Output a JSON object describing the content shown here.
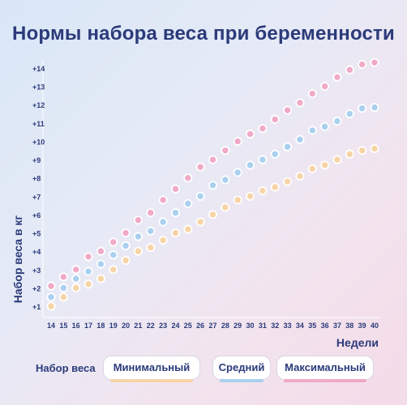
{
  "title": "Нормы набора веса при беременности",
  "chart_data": {
    "type": "scatter",
    "title": "Нормы набора веса при беременности",
    "xlabel": "Недели",
    "ylabel": "Набор веса в кг",
    "x": [
      14,
      15,
      16,
      17,
      18,
      19,
      20,
      21,
      22,
      23,
      24,
      25,
      26,
      27,
      28,
      29,
      30,
      31,
      32,
      33,
      34,
      35,
      36,
      37,
      38,
      39,
      40
    ],
    "x_tick_labels": [
      "14",
      "15",
      "16",
      "17",
      "18",
      "19",
      "20",
      "21",
      "22",
      "23",
      "24",
      "25",
      "26",
      "27",
      "28",
      "29",
      "30",
      "31",
      "32",
      "33",
      "34",
      "35",
      "36",
      "37",
      "38",
      "39",
      "40"
    ],
    "y_tick_labels": [
      "+1",
      "+2",
      "+3",
      "+4",
      "+5",
      "+6",
      "+7",
      "+8",
      "+9",
      "+10",
      "+11",
      "+12",
      "+13",
      "+14"
    ],
    "ylim": [
      1,
      14
    ],
    "xlim": [
      14,
      40
    ],
    "grid": false,
    "series": [
      {
        "name": "Минимальный",
        "color": "#f7d4a6",
        "values": [
          1.0,
          1.5,
          2.0,
          2.2,
          2.5,
          3.0,
          3.5,
          4.0,
          4.2,
          4.6,
          5.0,
          5.2,
          5.6,
          6.0,
          6.4,
          6.8,
          7.0,
          7.3,
          7.5,
          7.8,
          8.1,
          8.5,
          8.7,
          9.0,
          9.3,
          9.5,
          9.6
        ]
      },
      {
        "name": "Средний",
        "color": "#a9d0ef",
        "values": [
          1.5,
          2.0,
          2.5,
          2.9,
          3.3,
          3.8,
          4.3,
          4.8,
          5.1,
          5.6,
          6.1,
          6.6,
          7.0,
          7.6,
          7.9,
          8.3,
          8.7,
          9.0,
          9.3,
          9.7,
          10.1,
          10.6,
          10.8,
          11.1,
          11.5,
          11.8,
          11.85
        ]
      },
      {
        "name": "Максимальный",
        "color": "#f0aac7",
        "values": [
          2.1,
          2.6,
          3.0,
          3.7,
          4.0,
          4.5,
          5.0,
          5.7,
          6.1,
          6.8,
          7.4,
          8.0,
          8.6,
          9.0,
          9.5,
          10.0,
          10.4,
          10.7,
          11.2,
          11.7,
          12.1,
          12.6,
          13.0,
          13.5,
          13.9,
          14.2,
          14.3
        ]
      }
    ]
  },
  "legend": {
    "label": "Набор веса",
    "items": [
      {
        "label": "Минимальный",
        "color": "#f7d4a6"
      },
      {
        "label": "Средний",
        "color": "#a9d0ef"
      },
      {
        "label": "Максимальный",
        "color": "#f0aac7"
      }
    ]
  }
}
